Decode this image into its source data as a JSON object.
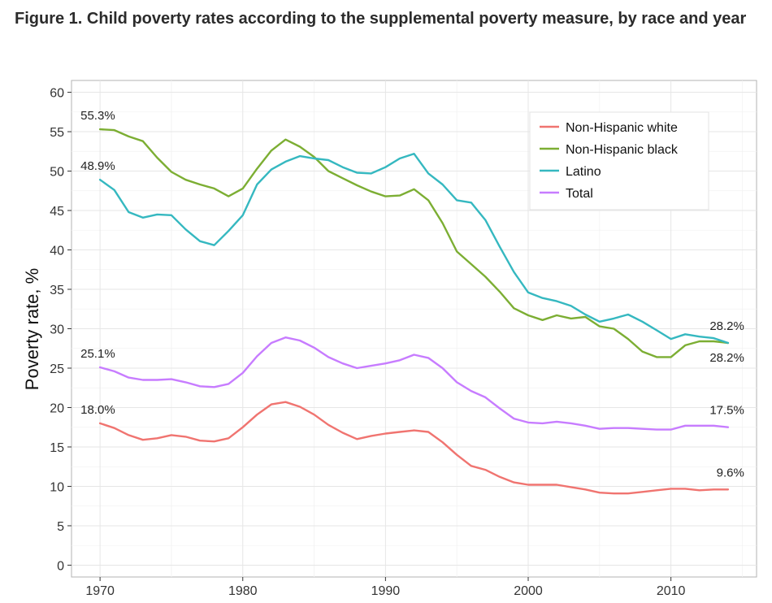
{
  "title": "Figure 1. Child poverty rates according to the supplemental poverty measure, by race and year",
  "chart_data": {
    "type": "line",
    "title": "Figure 1. Child poverty rates according to the supplemental poverty measure, by race and year",
    "xlabel": "",
    "ylabel": "Poverty rate, %",
    "xlim": [
      1968,
      2016
    ],
    "ylim": [
      -1.5,
      61.5
    ],
    "x_ticks": [
      1970,
      1980,
      1990,
      2000,
      2010
    ],
    "y_ticks": [
      0,
      5,
      10,
      15,
      20,
      25,
      30,
      35,
      40,
      45,
      50,
      55,
      60
    ],
    "grid": true,
    "legend_position": "top-right",
    "x": [
      1970,
      1971,
      1972,
      1973,
      1974,
      1975,
      1976,
      1977,
      1978,
      1979,
      1980,
      1981,
      1982,
      1983,
      1984,
      1985,
      1986,
      1987,
      1988,
      1989,
      1990,
      1991,
      1992,
      1993,
      1994,
      1995,
      1996,
      1997,
      1998,
      1999,
      2000,
      2001,
      2002,
      2003,
      2004,
      2005,
      2006,
      2007,
      2008,
      2009,
      2010,
      2011,
      2012,
      2013,
      2014
    ],
    "series": [
      {
        "name": "Non-Hispanic white",
        "color": "#F07470",
        "values": [
          18.0,
          17.4,
          16.5,
          15.9,
          16.1,
          16.5,
          16.3,
          15.8,
          15.7,
          16.1,
          17.5,
          19.1,
          20.4,
          20.7,
          20.1,
          19.1,
          17.8,
          16.8,
          16.0,
          16.4,
          16.7,
          16.9,
          17.1,
          16.9,
          15.6,
          14.0,
          12.6,
          12.1,
          11.2,
          10.5,
          10.2,
          10.2,
          10.2,
          9.9,
          9.6,
          9.2,
          9.1,
          9.1,
          9.3,
          9.5,
          9.7,
          9.7,
          9.5,
          9.6,
          9.6
        ]
      },
      {
        "name": "Non-Hispanic black",
        "color": "#7CAE33",
        "values": [
          55.3,
          55.2,
          54.4,
          53.8,
          51.7,
          49.9,
          48.9,
          48.3,
          47.8,
          46.8,
          47.8,
          50.3,
          52.6,
          54.0,
          53.1,
          51.8,
          50.0,
          49.1,
          48.2,
          47.4,
          46.8,
          46.9,
          47.7,
          46.3,
          43.4,
          39.8,
          38.2,
          36.6,
          34.7,
          32.6,
          31.7,
          31.1,
          31.7,
          31.3,
          31.5,
          30.3,
          30.0,
          28.7,
          27.1,
          26.4,
          26.4,
          27.9,
          28.4,
          28.4,
          28.2
        ]
      },
      {
        "name": "Latino",
        "color": "#35B8C0",
        "values": [
          48.9,
          47.6,
          44.8,
          44.1,
          44.5,
          44.4,
          42.6,
          41.1,
          40.6,
          42.4,
          44.4,
          48.3,
          50.2,
          51.2,
          51.9,
          51.6,
          51.4,
          50.5,
          49.8,
          49.7,
          50.5,
          51.6,
          52.2,
          49.7,
          48.3,
          46.3,
          46.0,
          43.8,
          40.4,
          37.2,
          34.6,
          33.9,
          33.5,
          32.9,
          31.8,
          30.9,
          31.3,
          31.8,
          30.9,
          29.8,
          28.7,
          29.3,
          29.0,
          28.8,
          28.2
        ]
      },
      {
        "name": "Total",
        "color": "#C77CFF",
        "values": [
          25.1,
          24.6,
          23.8,
          23.5,
          23.5,
          23.6,
          23.2,
          22.7,
          22.6,
          23.0,
          24.4,
          26.5,
          28.2,
          28.9,
          28.5,
          27.6,
          26.4,
          25.6,
          25.0,
          25.3,
          25.6,
          26.0,
          26.7,
          26.3,
          25.0,
          23.2,
          22.1,
          21.3,
          19.9,
          18.6,
          18.1,
          18.0,
          18.2,
          18.0,
          17.7,
          17.3,
          17.4,
          17.4,
          17.3,
          17.2,
          17.2,
          17.7,
          17.7,
          17.7,
          17.5
        ]
      }
    ],
    "annotations": [
      {
        "text": "55.3%",
        "x": 1970,
        "y": 55.3,
        "anchor": "start"
      },
      {
        "text": "48.9%",
        "x": 1970,
        "y": 48.9,
        "anchor": "start"
      },
      {
        "text": "25.1%",
        "x": 1970,
        "y": 25.1,
        "anchor": "start"
      },
      {
        "text": "18.0%",
        "x": 1970,
        "y": 18.0,
        "anchor": "start"
      },
      {
        "text": "28.2%",
        "x": 2014,
        "y": 28.2,
        "anchor": "end",
        "placement": "above"
      },
      {
        "text": "28.2%",
        "x": 2014,
        "y": 28.2,
        "anchor": "end",
        "placement": "below"
      },
      {
        "text": "17.5%",
        "x": 2014,
        "y": 17.5,
        "anchor": "end",
        "placement": "above"
      },
      {
        "text": "9.6%",
        "x": 2014,
        "y": 9.6,
        "anchor": "end",
        "placement": "above"
      }
    ]
  }
}
